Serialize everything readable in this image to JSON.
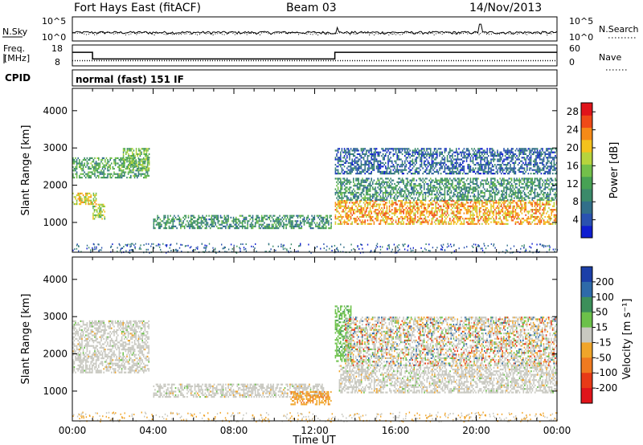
{
  "header": {
    "site": "Fort Hays East (fitACF)",
    "beam": "Beam 03",
    "date": "14/Nov/2013"
  },
  "noise_panel": {
    "left_label": "N.Sky",
    "left_ticks": [
      "10^5",
      "10^0"
    ],
    "right_label": "N.Search",
    "right_ticks": [
      "10^5",
      "10^0"
    ]
  },
  "freq_panel": {
    "left_label_1": "Freq.",
    "left_label_2": "[MHz]",
    "left_ticks": [
      "18",
      "8"
    ],
    "right_label": "Nave",
    "right_ticks": [
      "60",
      "0"
    ]
  },
  "cpid": {
    "label": "CPID",
    "value": "normal (fast) 151 IF"
  },
  "chart_data": [
    {
      "type": "line",
      "name": "noise",
      "x_range_hours": [
        0,
        24
      ],
      "yscale": "log",
      "ylim": [
        1,
        100000
      ],
      "series": [
        {
          "key": "sky",
          "style": "solid",
          "level": 60,
          "spikes": [
            {
              "x": 13.1,
              "y": 600
            },
            {
              "x": 20.2,
              "y": 3000
            }
          ]
        },
        {
          "key": "search",
          "style": "dotted",
          "level": 40
        }
      ]
    },
    {
      "type": "line",
      "name": "frequency",
      "x_range_hours": [
        0,
        24
      ],
      "ylim_freq_mhz": [
        8,
        18
      ],
      "ylim_nave": [
        0,
        60
      ],
      "series": [
        {
          "key": "freq",
          "style": "solid",
          "points": [
            [
              0,
              14.5
            ],
            [
              1.0,
              14.5
            ],
            [
              1.0,
              11.3
            ],
            [
              13.0,
              11.3
            ],
            [
              13.0,
              14.5
            ],
            [
              24,
              14.5
            ]
          ]
        },
        {
          "key": "nave",
          "style": "dotted",
          "points": [
            [
              0,
              15
            ],
            [
              24,
              15
            ]
          ]
        }
      ]
    },
    {
      "type": "heatmap",
      "name": "power",
      "x_range_hours": [
        0,
        24
      ],
      "ylabel": "Slant Range [km]",
      "y_ticks": [
        1000,
        2000,
        3000,
        4000
      ],
      "ylim_km": [
        200,
        4600
      ],
      "colorbar": {
        "label": "Power [dB]",
        "ticks": [
          4,
          8,
          12,
          16,
          20,
          24,
          28
        ],
        "range": [
          0,
          30
        ],
        "colors": [
          "#0f1ed0",
          "#2a52b0",
          "#326f8a",
          "#3b8a6a",
          "#47a254",
          "#73c04a",
          "#b7d43d",
          "#f4c21c",
          "#f68a17",
          "#ef4a17",
          "#e0141a"
        ]
      },
      "regions": [
        {
          "t": [
            0.0,
            1.2
          ],
          "r": [
            1500,
            1800
          ],
          "level": 19
        },
        {
          "t": [
            0.0,
            3.8
          ],
          "r": [
            2200,
            2750
          ],
          "level": 12
        },
        {
          "t": [
            1.0,
            1.6
          ],
          "r": [
            1100,
            1500
          ],
          "level": 16
        },
        {
          "t": [
            2.5,
            3.8
          ],
          "r": [
            2400,
            3000
          ],
          "level": 14
        },
        {
          "t": [
            4.0,
            12.8
          ],
          "r": [
            850,
            1200
          ],
          "level": 10
        },
        {
          "t": [
            13.0,
            24.0
          ],
          "r": [
            950,
            1600
          ],
          "level": 22
        },
        {
          "t": [
            13.0,
            24.0
          ],
          "r": [
            1600,
            2200
          ],
          "level": 10
        },
        {
          "t": [
            13.0,
            24.0
          ],
          "r": [
            2300,
            3000
          ],
          "level": 6
        }
      ]
    },
    {
      "type": "heatmap",
      "name": "velocity",
      "x_range_hours": [
        0,
        24
      ],
      "xlabel": "Time UT",
      "x_ticks": [
        "00:00",
        "04:00",
        "08:00",
        "12:00",
        "16:00",
        "20:00",
        "00:00"
      ],
      "ylabel": "Slant Range [km]",
      "y_ticks": [
        1000,
        2000,
        3000,
        4000
      ],
      "ylim_km": [
        200,
        4600
      ],
      "colorbar": {
        "label": "Velocity [m s⁻¹]",
        "ticks": [
          "200",
          "100",
          "50",
          "15",
          "-15",
          "-50",
          "-100",
          "-200"
        ],
        "colors": [
          "#1c3fa8",
          "#2e6aa9",
          "#3c8f5a",
          "#6cc14a",
          "#c8c8c0",
          "#f0a52a",
          "#f07a20",
          "#e83a17",
          "#e0141a"
        ]
      },
      "regions": [
        {
          "t": [
            0.0,
            3.8
          ],
          "r": [
            1500,
            2900
          ],
          "class": "ground"
        },
        {
          "t": [
            4.0,
            12.5
          ],
          "r": [
            850,
            1200
          ],
          "class": "ground"
        },
        {
          "t": [
            10.8,
            12.8
          ],
          "r": [
            650,
            1000
          ],
          "class": "negative"
        },
        {
          "t": [
            13.0,
            13.8
          ],
          "r": [
            1800,
            3300
          ],
          "class": "positive"
        },
        {
          "t": [
            13.2,
            24.0
          ],
          "r": [
            950,
            1700
          ],
          "class": "ground"
        },
        {
          "t": [
            13.5,
            24.0
          ],
          "r": [
            1700,
            3000
          ],
          "class": "mixed"
        }
      ]
    }
  ]
}
